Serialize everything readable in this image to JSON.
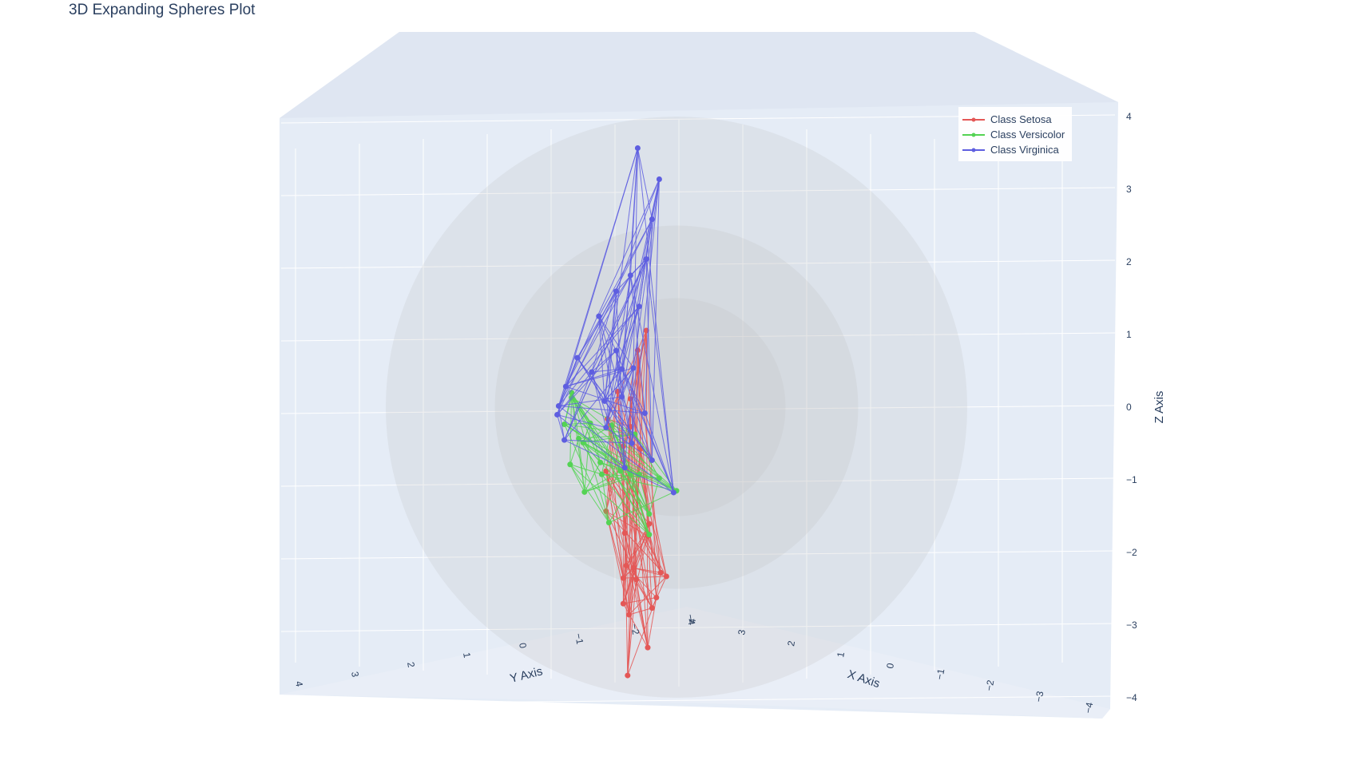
{
  "chart_data": {
    "type": "scatter3d",
    "title": "3D Expanding Spheres Plot",
    "axes": {
      "x": {
        "label": "X Axis",
        "range": [
          -4,
          4
        ],
        "ticks": [
          "−4",
          "−3",
          "−2",
          "−1",
          "0",
          "1",
          "2",
          "3",
          "4"
        ]
      },
      "y": {
        "label": "Y Axis",
        "range": [
          -4,
          4
        ],
        "ticks": [
          "−4",
          "−2",
          "−1",
          "0",
          "1",
          "2",
          "3",
          "4"
        ]
      },
      "z": {
        "label": "Z Axis",
        "range": [
          -4,
          4
        ],
        "ticks": [
          "−4",
          "−3",
          "−2",
          "−1",
          "0",
          "1",
          "2",
          "3",
          "4"
        ]
      }
    },
    "grid": true,
    "spheres": {
      "count": 3,
      "color": "#bfbfbf",
      "radii": [
        1.5,
        2.5,
        4
      ]
    },
    "legend": {
      "position": "top-right",
      "entries": [
        "Class Setosa",
        "Class Versicolor",
        "Class Virginica"
      ]
    },
    "series": [
      {
        "name": "Class Setosa",
        "color": "#e45756",
        "mode": "lines+markers",
        "points": [
          [
            -0.6,
            2.5,
            -2.4
          ],
          [
            -0.4,
            2.3,
            -2.3
          ],
          [
            -0.2,
            2.0,
            -2.6
          ],
          [
            0.0,
            1.7,
            -2.7
          ],
          [
            0.2,
            1.4,
            -3.2
          ],
          [
            0.4,
            1.6,
            -2.2
          ],
          [
            0.6,
            1.2,
            -2.0
          ],
          [
            0.8,
            0.9,
            -2.6
          ],
          [
            1.0,
            0.7,
            -2.4
          ],
          [
            1.0,
            0.4,
            -3.4
          ],
          [
            0.6,
            0.2,
            -1.6
          ],
          [
            1.2,
            0.0,
            -1.4
          ],
          [
            1.5,
            0.4,
            -1.0
          ],
          [
            0.9,
            0.8,
            -1.9
          ],
          [
            1.3,
            -0.2,
            -2.0
          ],
          [
            0.4,
            0.9,
            1.2
          ],
          [
            0.7,
            0.6,
            1.0
          ],
          [
            1.0,
            0.2,
            0.4
          ],
          [
            1.4,
            -0.1,
            0.6
          ],
          [
            1.7,
            -0.3,
            0.3
          ],
          [
            0.2,
            1.3,
            -1.5
          ],
          [
            0.5,
            1.0,
            -0.4
          ],
          [
            0.9,
            0.5,
            0.0
          ],
          [
            1.2,
            0.1,
            -0.2
          ],
          [
            1.8,
            -0.5,
            -0.4
          ]
        ]
      },
      {
        "name": "Class Versicolor",
        "color": "#54d354",
        "mode": "lines+markers",
        "points": [
          [
            -0.3,
            0.9,
            -1.2
          ],
          [
            0.2,
            0.6,
            -0.9
          ],
          [
            0.8,
            0.2,
            -0.7
          ],
          [
            1.4,
            -0.3,
            -0.5
          ],
          [
            2.0,
            -0.8,
            -0.4
          ],
          [
            2.6,
            -1.4,
            -0.5
          ],
          [
            3.1,
            -1.9,
            0.0
          ],
          [
            3.3,
            -2.1,
            0.6
          ],
          [
            3.0,
            -1.7,
            0.9
          ],
          [
            2.4,
            -1.2,
            0.4
          ],
          [
            1.7,
            -0.6,
            0.2
          ],
          [
            1.0,
            -0.1,
            -0.1
          ],
          [
            0.5,
            0.4,
            -1.6
          ],
          [
            1.9,
            -1.0,
            -1.1
          ],
          [
            2.7,
            -1.6,
            0.2
          ],
          [
            3.2,
            -2.3,
            1.0
          ],
          [
            2.2,
            -1.3,
            -0.2
          ],
          [
            1.2,
            -0.4,
            -0.6
          ],
          [
            0.6,
            0.1,
            -1.3
          ],
          [
            2.9,
            -1.9,
            0.3
          ]
        ]
      },
      {
        "name": "Class Virginica",
        "color": "#5e5ee0",
        "mode": "lines+markers",
        "points": [
          [
            -0.2,
            0.8,
            -1.2
          ],
          [
            0.4,
            0.5,
            -0.6
          ],
          [
            1.2,
            0.0,
            -0.5
          ],
          [
            0.8,
            0.3,
            3.8
          ],
          [
            0.1,
            0.9,
            3.2
          ],
          [
            0.3,
            0.8,
            2.7
          ],
          [
            0.5,
            0.6,
            2.2
          ],
          [
            1.0,
            0.2,
            2.1
          ],
          [
            1.5,
            -0.3,
            2.0
          ],
          [
            2.1,
            -0.9,
            1.8
          ],
          [
            2.8,
            -1.5,
            1.4
          ],
          [
            3.2,
            -1.9,
            1.1
          ],
          [
            3.5,
            -2.3,
            0.9
          ],
          [
            3.6,
            -2.5,
            0.8
          ],
          [
            3.4,
            -2.4,
            0.4
          ],
          [
            0.9,
            0.3,
            0.8
          ],
          [
            1.3,
            -0.1,
            0.5
          ],
          [
            1.8,
            -0.5,
            0.2
          ],
          [
            0.6,
            0.4,
            0.1
          ],
          [
            1.1,
            -0.2,
            -0.2
          ],
          [
            2.4,
            -1.3,
            1.1
          ],
          [
            1.6,
            -0.6,
            1.2
          ],
          [
            0.7,
            0.5,
            1.6
          ],
          [
            2.0,
            -1.0,
            0.6
          ],
          [
            1.4,
            -0.4,
            0.9
          ]
        ]
      }
    ]
  }
}
